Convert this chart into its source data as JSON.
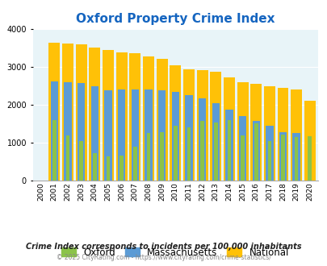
{
  "title": "Oxford Property Crime Index",
  "years": [
    2000,
    2001,
    2002,
    2003,
    2004,
    2005,
    2006,
    2007,
    2008,
    2009,
    2010,
    2011,
    2012,
    2013,
    2014,
    2015,
    2016,
    2017,
    2018,
    2019,
    2020
  ],
  "oxford": [
    0,
    1600,
    1200,
    1060,
    740,
    650,
    670,
    910,
    1260,
    1290,
    1450,
    1420,
    1580,
    1550,
    1600,
    1190,
    1510,
    1040,
    1230,
    1160,
    1170
  ],
  "massachusetts": [
    0,
    2630,
    2600,
    2580,
    2490,
    2380,
    2410,
    2420,
    2420,
    2390,
    2350,
    2270,
    2170,
    2060,
    1870,
    1710,
    1590,
    1460,
    1280,
    1260,
    0
  ],
  "national": [
    0,
    3650,
    3620,
    3600,
    3520,
    3450,
    3390,
    3360,
    3280,
    3220,
    3050,
    2950,
    2920,
    2880,
    2740,
    2610,
    2560,
    2490,
    2450,
    2420,
    2120
  ],
  "oxford_color": "#8bc34a",
  "mass_color": "#5b9bd5",
  "national_color": "#ffc107",
  "bg_color": "#e8f4f8",
  "ylim": [
    0,
    4000
  ],
  "yticks": [
    0,
    1000,
    2000,
    3000,
    4000
  ],
  "title_color": "#1565c0",
  "title_fontsize": 11,
  "footer1": "Crime Index corresponds to incidents per 100,000 inhabitants",
  "footer2": "© 2025 CityRating.com - https://www.cityrating.com/crime-statistics/",
  "legend_labels": [
    "Oxford",
    "Massachusetts",
    "National"
  ]
}
